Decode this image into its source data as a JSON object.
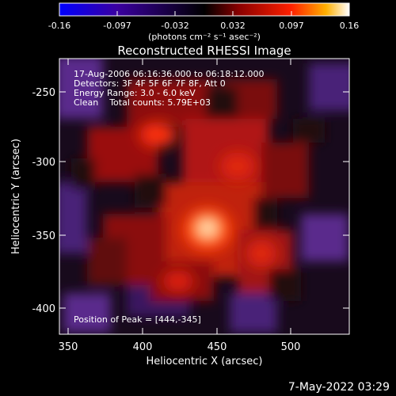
{
  "colorbar": {
    "tick_labels": [
      "-0.16",
      "-0.097",
      "-0.032",
      "0.032",
      "0.097",
      "0.16"
    ],
    "unit_label": "(photons cm⁻² s⁻¹ asec⁻²)",
    "colors": [
      "#0000ff",
      "#3a00a0",
      "#000000",
      "#8a0000",
      "#ff2000",
      "#ffb000",
      "#ffffff"
    ]
  },
  "chart_data": {
    "type": "heatmap",
    "title": "Reconstructed RHESSI Image",
    "xlabel": "Heliocentric X (arcsec)",
    "ylabel": "Heliocentric Y (arcsec)",
    "x_ticks": [
      "350",
      "400",
      "450",
      "500"
    ],
    "y_ticks": [
      "-250",
      "-300",
      "-350",
      "-400"
    ],
    "xlim": [
      340,
      535
    ],
    "ylim": [
      -420,
      -225
    ],
    "peak": {
      "x": 444,
      "y": -345
    }
  },
  "annotations": {
    "line1": "17-Aug-2006 06:16:36.000 to 06:18:12.000",
    "line2": "Detectors: 3F 4F 5F 6F 7F 8F, Att 0",
    "line3": "Energy Range: 3.0 - 6.0 keV",
    "line4": "Clean    Total counts: 5.79E+03",
    "peak_text": "Position of Peak = [444,-345]"
  },
  "timestamp": "7-May-2022 03:29"
}
